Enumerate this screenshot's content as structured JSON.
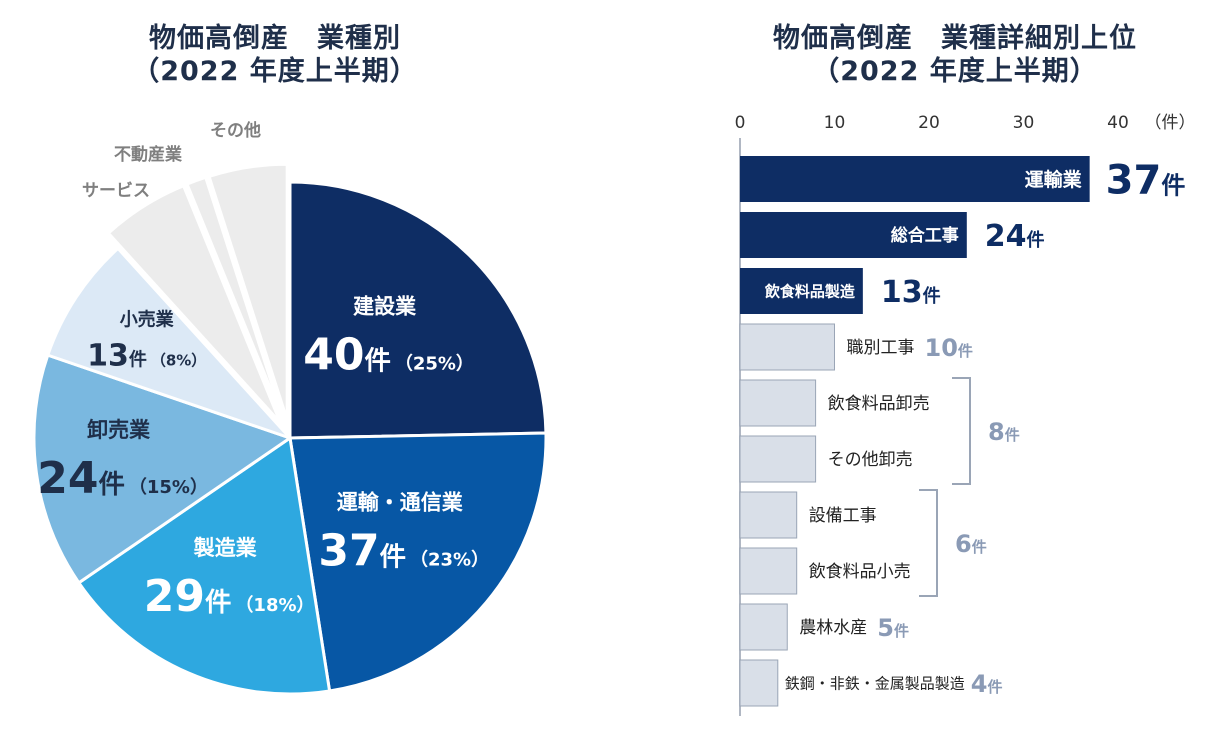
{
  "left_title": {
    "line1": "物価高倒産　業種別",
    "line2": "（2022 年度上半期）"
  },
  "right_title": {
    "line1": "物価高倒産　業種詳細別上位",
    "line2": "（2022 年度上半期）"
  },
  "colors": {
    "title": "#1f2f4a",
    "construction": "#0e2d64",
    "transport": "#0757a5",
    "manufacturing": "#2ea8e0",
    "wholesale": "#7ab8e0",
    "retail": "#dce9f6",
    "other": "#ececec",
    "bar_top": "#0e2d64",
    "bar_rest": "#d9dfe8",
    "muted_value": "#8a9ab5",
    "muted_label": "#7f7f7f"
  },
  "chart_data": [
    {
      "type": "pie",
      "title": "物価高倒産　業種別（2022 年度上半期）",
      "slices": [
        {
          "name": "建設業",
          "value": 40,
          "unit": "件",
          "percent": "（25%）"
        },
        {
          "name": "運輸・通信業",
          "value": 37,
          "unit": "件",
          "percent": "（23%）"
        },
        {
          "name": "製造業",
          "value": 29,
          "unit": "件",
          "percent": "（18%）"
        },
        {
          "name": "卸売業",
          "value": 24,
          "unit": "件",
          "percent": "（15%）"
        },
        {
          "name": "小売業",
          "value": 13,
          "unit": "件",
          "percent": "（8%）"
        },
        {
          "name": "サービス",
          "value": 9
        },
        {
          "name": "不動産業",
          "value": 2
        },
        {
          "name": "その他",
          "value": 8
        }
      ]
    },
    {
      "type": "bar",
      "orientation": "horizontal",
      "title": "物価高倒産　業種詳細別上位（2022 年度上半期）",
      "unit_label": "（件）",
      "value_unit": "件",
      "xlim": [
        0,
        40
      ],
      "xticks": [
        0,
        10,
        20,
        30,
        40
      ],
      "categories": [
        "運輸業",
        "総合工事",
        "飲食料品製造",
        "職別工事",
        "飲食料品卸売",
        "その他卸売",
        "設備工事",
        "飲食料品小売",
        "農林水産",
        "鉄鋼・非鉄・金属製品製造"
      ],
      "values": [
        37,
        24,
        13,
        10,
        8,
        8,
        6,
        6,
        5,
        4
      ],
      "value_labels": [
        "37",
        "24",
        "13",
        "10",
        "8",
        "8",
        "6",
        "6",
        "5",
        "4"
      ],
      "groups": [
        {
          "label": "8",
          "categories": [
            "飲食料品卸売",
            "その他卸売"
          ]
        },
        {
          "label": "6",
          "categories": [
            "設備工事",
            "飲食料品小売"
          ]
        }
      ]
    }
  ]
}
